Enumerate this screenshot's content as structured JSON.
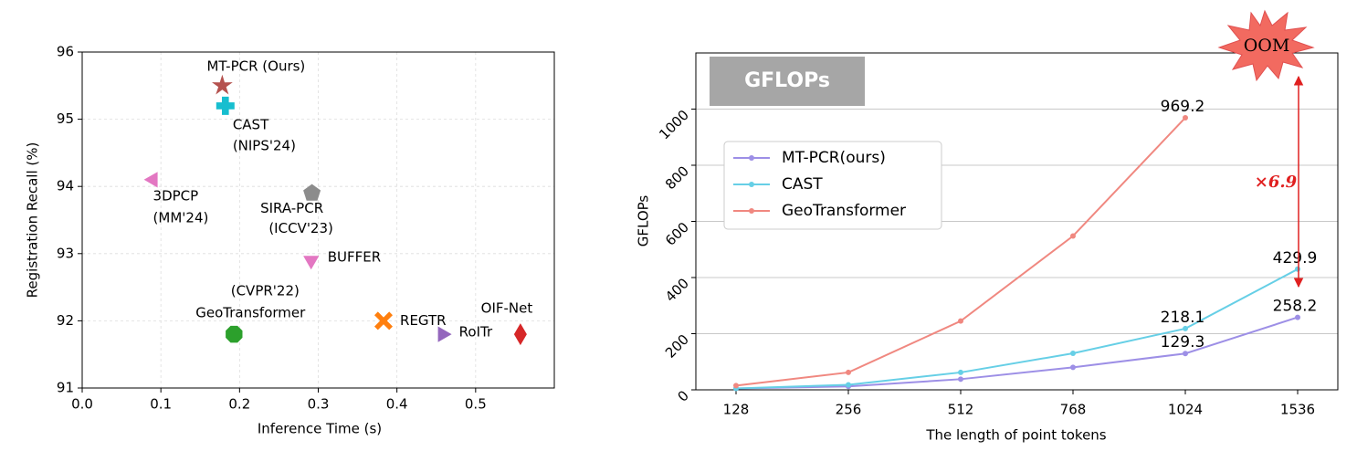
{
  "chart_data": [
    {
      "type": "scatter",
      "xlabel": "Inference Time (s)",
      "ylabel": "Registration Recall (%)",
      "xlim": [
        0,
        0.6
      ],
      "xticks": [
        {
          "value": 0,
          "label": "0.0"
        },
        0.1,
        0.2,
        0.3,
        0.4,
        0.5
      ],
      "ylim": [
        91,
        96
      ],
      "yticks": [
        91,
        92,
        93,
        94,
        95,
        96
      ],
      "grid": true,
      "series": [
        {
          "name": "MT-PCR (Ours)",
          "color": "#b5524f",
          "label_color": "#a0522d",
          "marker": "star",
          "x": [
            0.178
          ],
          "values": [
            95.5
          ]
        },
        {
          "name": "CAST",
          "note": "(NIPS'24)",
          "color": "#17becf",
          "label_color": "#17becf",
          "marker": "plus",
          "x": [
            0.182
          ],
          "values": [
            95.2
          ]
        },
        {
          "name": "3DPCP",
          "note": "(MM'24)",
          "color": "#e377c2",
          "label_color": "#e377c2",
          "marker": "triangle-left",
          "x": [
            0.09
          ],
          "values": [
            94.1
          ]
        },
        {
          "name": "SIRA-PCR",
          "note": "(ICCV'23)",
          "color": "#8c8c8c",
          "label_color": "#7f7f7f",
          "marker": "pentagon",
          "x": [
            0.292
          ],
          "values": [
            93.9
          ]
        },
        {
          "name": "BUFFER",
          "color": "#e377c2",
          "label_color": "#e377c2",
          "marker": "triangle-down",
          "x": [
            0.291
          ],
          "values": [
            92.9
          ]
        },
        {
          "name": "GeoTransformer",
          "note": "(CVPR'22)",
          "color": "#2ca02c",
          "label_color": "#2ca02c",
          "marker": "octagon",
          "x": [
            0.193
          ],
          "values": [
            91.8
          ]
        },
        {
          "name": "REGTR",
          "color": "#ff7f0e",
          "label_color": "#ff7f0e",
          "marker": "x",
          "x": [
            0.383
          ],
          "values": [
            92.0
          ]
        },
        {
          "name": "RoITr",
          "color": "#9467bd",
          "label_color": "#9467bd",
          "marker": "triangle-right",
          "x": [
            0.458
          ],
          "values": [
            91.8
          ]
        },
        {
          "name": "OIF-Net",
          "color": "#d62728",
          "label_color": "#d62728",
          "marker": "diamond",
          "x": [
            0.557
          ],
          "values": [
            91.8
          ]
        }
      ]
    },
    {
      "type": "line",
      "title": "GFLOPs",
      "xlabel": "The length of point tokens",
      "ylabel": "GFLOPs",
      "categories": [
        128,
        256,
        512,
        768,
        1024,
        1536
      ],
      "ylim": [
        0,
        1200
      ],
      "yticks": [
        0,
        200,
        400,
        600,
        800,
        1000
      ],
      "grid": true,
      "legend": "upper left",
      "series": [
        {
          "name": "MT-PCR(ours)",
          "color": "#9d8fe6",
          "values": [
            5,
            12,
            38,
            80,
            129.3,
            258.2
          ],
          "value_labels": [
            null,
            null,
            null,
            null,
            "129.3",
            "258.2"
          ]
        },
        {
          "name": "CAST",
          "color": "#66cfe6",
          "values": [
            5,
            18,
            62,
            130,
            218.1,
            429.9
          ],
          "value_labels": [
            null,
            null,
            null,
            null,
            "218.1",
            "429.9"
          ]
        },
        {
          "name": "GeoTransformer",
          "color": "#f08880",
          "values": [
            15,
            62,
            245,
            548,
            969.2,
            null
          ],
          "value_labels": [
            null,
            null,
            null,
            null,
            "969.2",
            null
          ]
        }
      ],
      "annotations": {
        "oom": "OOM",
        "ratio": "×6.9"
      }
    }
  ]
}
